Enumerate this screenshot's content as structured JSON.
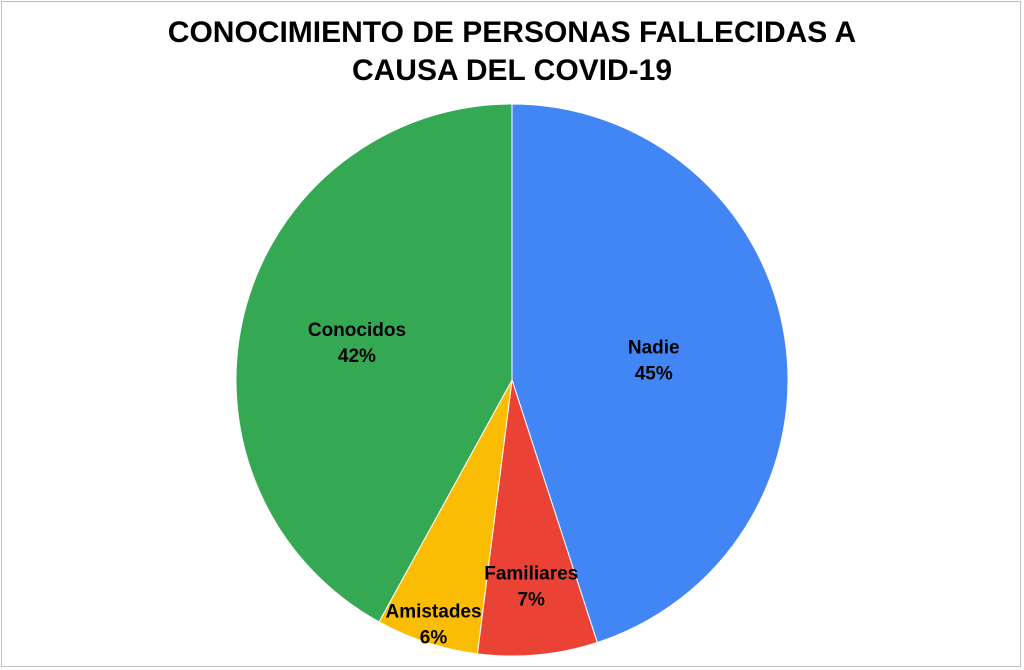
{
  "chart_data": {
    "type": "pie",
    "title_lines": [
      "CONOCIMIENTO DE PERSONAS FALLECIDAS A",
      "CAUSA DEL COVID-19"
    ],
    "slices": [
      {
        "label": "Nadie",
        "value": 45,
        "display": "45%",
        "color": "#4285F4"
      },
      {
        "label": "Familiares",
        "value": 7,
        "display": "7%",
        "color": "#EA4335"
      },
      {
        "label": "Amistades",
        "value": 6,
        "display": "6%",
        "color": "#FBBC04"
      },
      {
        "label": "Conocidos",
        "value": 42,
        "display": "42%",
        "color": "#34A853"
      }
    ],
    "start_angle": "12 o'clock",
    "direction": "clockwise",
    "legend": "none"
  }
}
